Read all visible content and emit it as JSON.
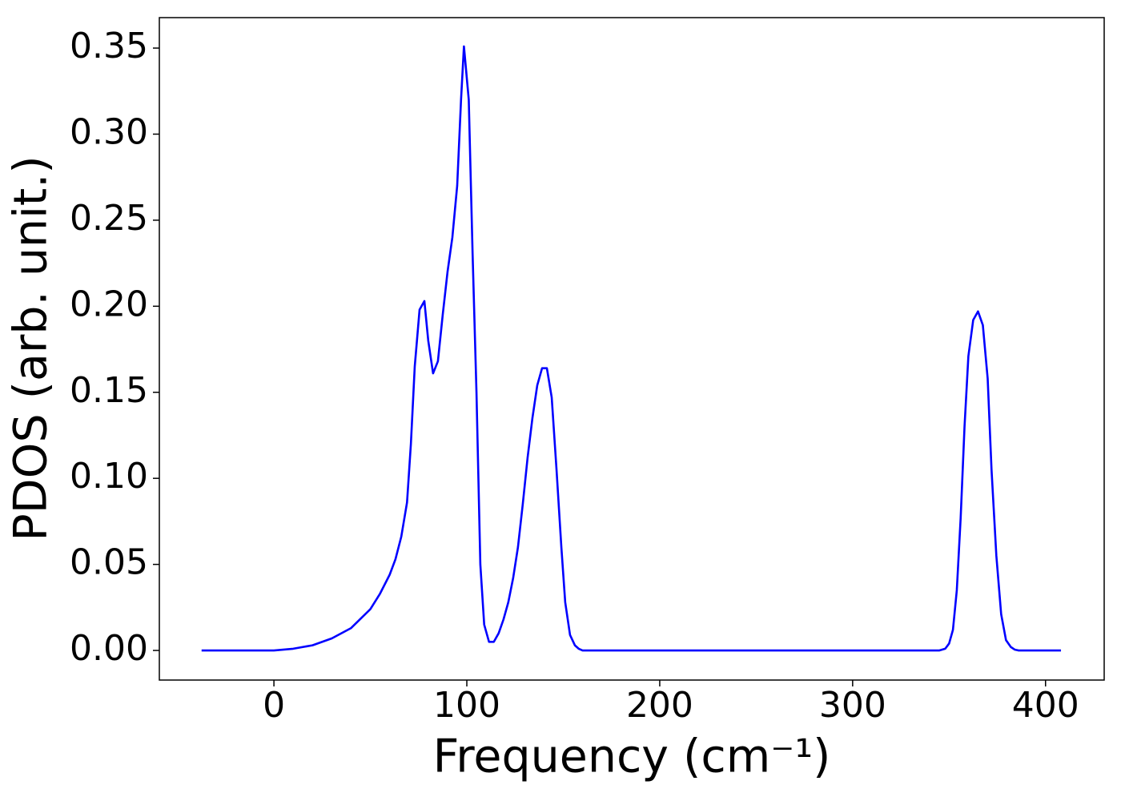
{
  "chart_data": {
    "type": "line",
    "xlabel": "Frequency (cm⁻¹)",
    "ylabel": "PDOS (arb. unit.)",
    "x": [
      -37.5,
      -20,
      0,
      10,
      20,
      30,
      40,
      50,
      55,
      60,
      63,
      66,
      69,
      71,
      73,
      75.5,
      78,
      80,
      82.5,
      85,
      87.5,
      90,
      92.5,
      95,
      97,
      98.5,
      101,
      103,
      105,
      107,
      109,
      111.5,
      114,
      116.5,
      119,
      121.5,
      124,
      126.5,
      129,
      131.5,
      134,
      136.5,
      139,
      141.5,
      144,
      146.5,
      149,
      151,
      153.5,
      156,
      158,
      160,
      200,
      300,
      345,
      348,
      350,
      352,
      354,
      356,
      358,
      360,
      362.5,
      365,
      367.5,
      370,
      372,
      374.5,
      377,
      379.5,
      382,
      384,
      386,
      408
    ],
    "series": [
      {
        "color": "#0000ff",
        "values": [
          0,
          0,
          0,
          0.001,
          0.003,
          0.007,
          0.013,
          0.024,
          0.033,
          0.044,
          0.053,
          0.066,
          0.086,
          0.12,
          0.165,
          0.198,
          0.203,
          0.18,
          0.161,
          0.168,
          0.195,
          0.22,
          0.24,
          0.27,
          0.32,
          0.351,
          0.32,
          0.23,
          0.15,
          0.05,
          0.015,
          0.005,
          0.005,
          0.01,
          0.018,
          0.028,
          0.042,
          0.06,
          0.085,
          0.112,
          0.135,
          0.154,
          0.164,
          0.164,
          0.147,
          0.105,
          0.06,
          0.028,
          0.009,
          0.003,
          0.001,
          0,
          0,
          0,
          0,
          0.001,
          0.004,
          0.012,
          0.035,
          0.077,
          0.13,
          0.171,
          0.192,
          0.197,
          0.189,
          0.158,
          0.105,
          0.055,
          0.021,
          0.006,
          0.002,
          0.0005,
          0,
          0
        ]
      }
    ],
    "xlim": [
      -59.4,
      430.4
    ],
    "ylim": [
      -0.0172,
      0.3677
    ],
    "xticks": [
      0,
      100,
      200,
      300,
      400
    ],
    "yticks": [
      {
        "value": 0,
        "label": "0.00"
      },
      0.05,
      {
        "value": 0.1,
        "label": "0.10"
      },
      0.15,
      {
        "value": 0.2,
        "label": "0.20"
      },
      0.25,
      {
        "value": 0.3,
        "label": "0.30"
      },
      0.35
    ]
  }
}
